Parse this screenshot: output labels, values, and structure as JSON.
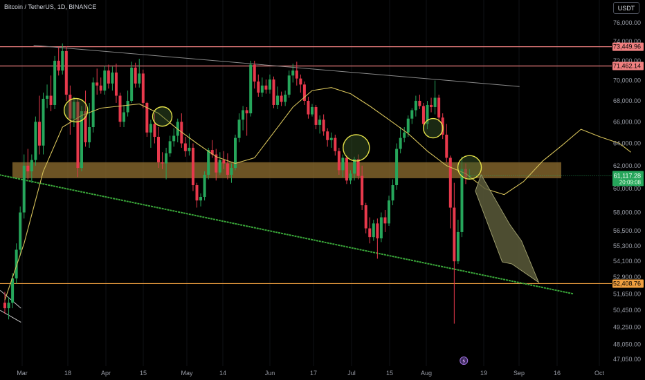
{
  "symbol_title": "Bitcoin / TetherUS, 1D, BINANCE",
  "currency_button": "USDT",
  "colors": {
    "background": "#000000",
    "candle_up": "#26a65b",
    "candle_down": "#e8394c",
    "resistance_line": "#f08080",
    "support_line": "#f0a040",
    "trend_line_lower": "#3aa83a",
    "trend_line_upper": "#8a8a8a",
    "zone_fill": "#8a6a2e",
    "moving_average": "#d6c25a",
    "circle": "#e6e24a",
    "arrow_fill": "#5a5a3a",
    "last_price_bg": "#26a65b"
  },
  "chart_data": {
    "type": "candlestick",
    "instrument": "Bitcoin / TetherUS",
    "interval": "1D",
    "exchange": "BINANCE",
    "y_axis": {
      "scale": "log",
      "ticks": [
        "76,000.00",
        "74,000.00",
        "72,000.00",
        "70,000.00",
        "68,000.00",
        "66,000.00",
        "64,000.00",
        "62,000.00",
        "60,000.00",
        "58,000.00",
        "56,500.00",
        "55,300.00",
        "54,100.00",
        "52,900.00",
        "51,650.00",
        "50,450.00",
        "49,250.00",
        "48,050.00",
        "47,050.00"
      ],
      "tick_values": [
        76000,
        74000,
        72000,
        70000,
        68000,
        66000,
        64000,
        62000,
        60000,
        58000,
        56500,
        55300,
        54100,
        52900,
        51650,
        50450,
        49250,
        48050,
        47050
      ]
    },
    "x_axis": {
      "ticks": [
        "Mar",
        "18",
        "Apr",
        "15",
        "May",
        "14",
        "Jun",
        "17",
        "Jul",
        "15",
        "Aug",
        "19",
        "Sep",
        "16",
        "Oct"
      ]
    },
    "horizontal_levels": [
      {
        "value": 73449.96,
        "label": "73,449.96",
        "kind": "resistance"
      },
      {
        "value": 71462.14,
        "label": "71,462.14",
        "kind": "resistance"
      },
      {
        "value": 52408.76,
        "label": "52,408.76",
        "kind": "support"
      }
    ],
    "last_price": {
      "value": 61117.28,
      "label": "61,117.28",
      "countdown": "20:09:08"
    },
    "zone": {
      "low": 60900,
      "high": 62300
    },
    "candles": [
      [
        51000,
        51800,
        50200,
        50600
      ],
      [
        50600,
        51400,
        49800,
        51000
      ],
      [
        51000,
        53200,
        50600,
        52800
      ],
      [
        52800,
        55500,
        52400,
        55000
      ],
      [
        55000,
        58500,
        54500,
        58000
      ],
      [
        58000,
        63000,
        57500,
        62000
      ],
      [
        62000,
        63500,
        60800,
        61500
      ],
      [
        61500,
        63000,
        60500,
        62500
      ],
      [
        62500,
        66500,
        62000,
        66000
      ],
      [
        66000,
        68500,
        63000,
        63800
      ],
      [
        63800,
        68800,
        63000,
        68200
      ],
      [
        68200,
        69600,
        67300,
        68500
      ],
      [
        68500,
        70500,
        67000,
        67600
      ],
      [
        67600,
        72500,
        67200,
        72000
      ],
      [
        72000,
        73400,
        70500,
        71000
      ],
      [
        71000,
        73800,
        70600,
        73000
      ],
      [
        73000,
        73500,
        68000,
        68600
      ],
      [
        68600,
        69500,
        64800,
        66300
      ],
      [
        66300,
        68400,
        65500,
        67900
      ],
      [
        67900,
        68200,
        61000,
        61800
      ],
      [
        61800,
        67500,
        61500,
        67000
      ],
      [
        67000,
        69000,
        63700,
        64100
      ],
      [
        64100,
        67800,
        63600,
        65500
      ],
      [
        65500,
        70300,
        65000,
        69800
      ],
      [
        69800,
        71200,
        68600,
        69500
      ],
      [
        69500,
        70300,
        68700,
        69000
      ],
      [
        69000,
        71500,
        68600,
        71000
      ],
      [
        71000,
        71600,
        69200,
        69700
      ],
      [
        69700,
        71400,
        69000,
        70800
      ],
      [
        70800,
        71700,
        67800,
        68500
      ],
      [
        68500,
        68800,
        65500,
        66000
      ],
      [
        66000,
        67600,
        65500,
        66900
      ],
      [
        66900,
        69000,
        66500,
        68000
      ],
      [
        68000,
        71900,
        67800,
        71300
      ],
      [
        71300,
        71800,
        69300,
        69700
      ],
      [
        69700,
        72200,
        69300,
        70700
      ],
      [
        70700,
        71100,
        67300,
        67800
      ],
      [
        67800,
        67900,
        64600,
        65000
      ],
      [
        65000,
        66200,
        63600,
        65800
      ],
      [
        65800,
        66800,
        64000,
        64600
      ],
      [
        64600,
        65500,
        61800,
        62300
      ],
      [
        62300,
        63200,
        61700,
        62200
      ],
      [
        62200,
        63600,
        60800,
        63100
      ],
      [
        63100,
        64700,
        62800,
        64200
      ],
      [
        64200,
        65400,
        63700,
        64700
      ],
      [
        64700,
        66300,
        64100,
        66000
      ],
      [
        66000,
        66800,
        63600,
        64000
      ],
      [
        64000,
        64600,
        62800,
        63300
      ],
      [
        63300,
        64900,
        62900,
        63600
      ],
      [
        63600,
        64000,
        59800,
        60300
      ],
      [
        60300,
        60500,
        58400,
        59000
      ],
      [
        59000,
        59600,
        58500,
        59300
      ],
      [
        59300,
        61500,
        59000,
        61200
      ],
      [
        61200,
        63600,
        60800,
        63400
      ],
      [
        63400,
        64300,
        62700,
        63000
      ],
      [
        63000,
        63500,
        60700,
        61400
      ],
      [
        61400,
        63200,
        61200,
        62500
      ],
      [
        62500,
        63300,
        61700,
        62200
      ],
      [
        62200,
        63100,
        60800,
        61200
      ],
      [
        61200,
        62200,
        60500,
        61800
      ],
      [
        61800,
        64800,
        61600,
        64500
      ],
      [
        64500,
        66800,
        64100,
        66200
      ],
      [
        66200,
        67500,
        65200,
        67100
      ],
      [
        67100,
        67400,
        64700,
        66800
      ],
      [
        66800,
        72000,
        66500,
        71600
      ],
      [
        71600,
        72000,
        69200,
        69900
      ],
      [
        69900,
        70600,
        68400,
        68800
      ],
      [
        68800,
        70300,
        68400,
        69500
      ],
      [
        69500,
        70100,
        68700,
        69100
      ],
      [
        69100,
        70600,
        68700,
        70100
      ],
      [
        70100,
        70400,
        67300,
        67600
      ],
      [
        67600,
        69400,
        67200,
        68500
      ],
      [
        68500,
        68900,
        67500,
        67900
      ],
      [
        67900,
        69000,
        67500,
        68600
      ],
      [
        68600,
        71000,
        68300,
        70500
      ],
      [
        70500,
        71700,
        69800,
        71000
      ],
      [
        71000,
        71900,
        69500,
        70200
      ],
      [
        70200,
        70600,
        68800,
        69600
      ],
      [
        69600,
        69900,
        67600,
        68000
      ],
      [
        68000,
        68400,
        66300,
        66700
      ],
      [
        66700,
        67700,
        66500,
        67400
      ],
      [
        67400,
        67600,
        65300,
        65700
      ],
      [
        65700,
        66600,
        64900,
        66200
      ],
      [
        66200,
        66700,
        64700,
        65100
      ],
      [
        65100,
        65400,
        63700,
        64300
      ],
      [
        64300,
        65000,
        63600,
        64500
      ],
      [
        64500,
        64800,
        62900,
        63300
      ],
      [
        63300,
        63600,
        61200,
        61600
      ],
      [
        61600,
        63000,
        61000,
        62700
      ],
      [
        62700,
        62900,
        60400,
        60700
      ],
      [
        60700,
        61600,
        60400,
        61300
      ],
      [
        61300,
        62800,
        60700,
        62600
      ],
      [
        62600,
        63000,
        60800,
        61100
      ],
      [
        61100,
        62000,
        58200,
        58600
      ],
      [
        58600,
        58800,
        56300,
        56700
      ],
      [
        56700,
        57600,
        55500,
        56000
      ],
      [
        56000,
        57400,
        55700,
        57100
      ],
      [
        57100,
        57500,
        54300,
        55900
      ],
      [
        55900,
        58000,
        55600,
        57600
      ],
      [
        57600,
        58200,
        56400,
        57100
      ],
      [
        57100,
        59400,
        56900,
        59000
      ],
      [
        59000,
        60800,
        58600,
        60300
      ],
      [
        60300,
        64000,
        59900,
        63500
      ],
      [
        63500,
        65500,
        63100,
        64500
      ],
      [
        64500,
        65500,
        64100,
        65000
      ],
      [
        65000,
        66600,
        64600,
        66300
      ],
      [
        66300,
        67300,
        65800,
        67100
      ],
      [
        67100,
        68500,
        66500,
        68000
      ],
      [
        68000,
        68600,
        67200,
        67500
      ],
      [
        67500,
        67800,
        65400,
        65800
      ],
      [
        65800,
        68000,
        65300,
        67600
      ],
      [
        67600,
        68300,
        66900,
        67400
      ],
      [
        67400,
        70000,
        66700,
        68300
      ],
      [
        68300,
        68600,
        66000,
        66400
      ],
      [
        66400,
        66800,
        64400,
        64800
      ],
      [
        64800,
        65800,
        62300,
        62700
      ],
      [
        62700,
        62900,
        56700,
        58400
      ],
      [
        58400,
        60500,
        49500,
        54100
      ],
      [
        54100,
        57400,
        53900,
        56400
      ],
      [
        56400,
        62800,
        56000,
        61700
      ],
      [
        61700,
        62200,
        60400,
        61000
      ],
      [
        61000,
        61700,
        60800,
        61117
      ]
    ],
    "moving_average": [
      [
        0,
        51200
      ],
      [
        5,
        55500
      ],
      [
        10,
        61500
      ],
      [
        15,
        65500
      ],
      [
        20,
        66600
      ],
      [
        25,
        67300
      ],
      [
        30,
        67500
      ],
      [
        35,
        67700
      ],
      [
        40,
        66800
      ],
      [
        45,
        65300
      ],
      [
        50,
        64000
      ],
      [
        55,
        62800
      ],
      [
        60,
        62200
      ],
      [
        65,
        62700
      ],
      [
        70,
        65000
      ],
      [
        75,
        67400
      ],
      [
        80,
        69000
      ],
      [
        85,
        69300
      ],
      [
        90,
        68700
      ],
      [
        95,
        67500
      ],
      [
        100,
        66200
      ],
      [
        105,
        64900
      ],
      [
        110,
        63300
      ],
      [
        115,
        62000
      ],
      [
        120,
        61300
      ],
      [
        125,
        60000
      ],
      [
        130,
        59500
      ],
      [
        135,
        60600
      ],
      [
        140,
        62400
      ],
      [
        145,
        63800
      ],
      [
        150,
        65300
      ],
      [
        155,
        64600
      ],
      [
        160,
        64000
      ],
      [
        163,
        63200
      ]
    ]
  }
}
